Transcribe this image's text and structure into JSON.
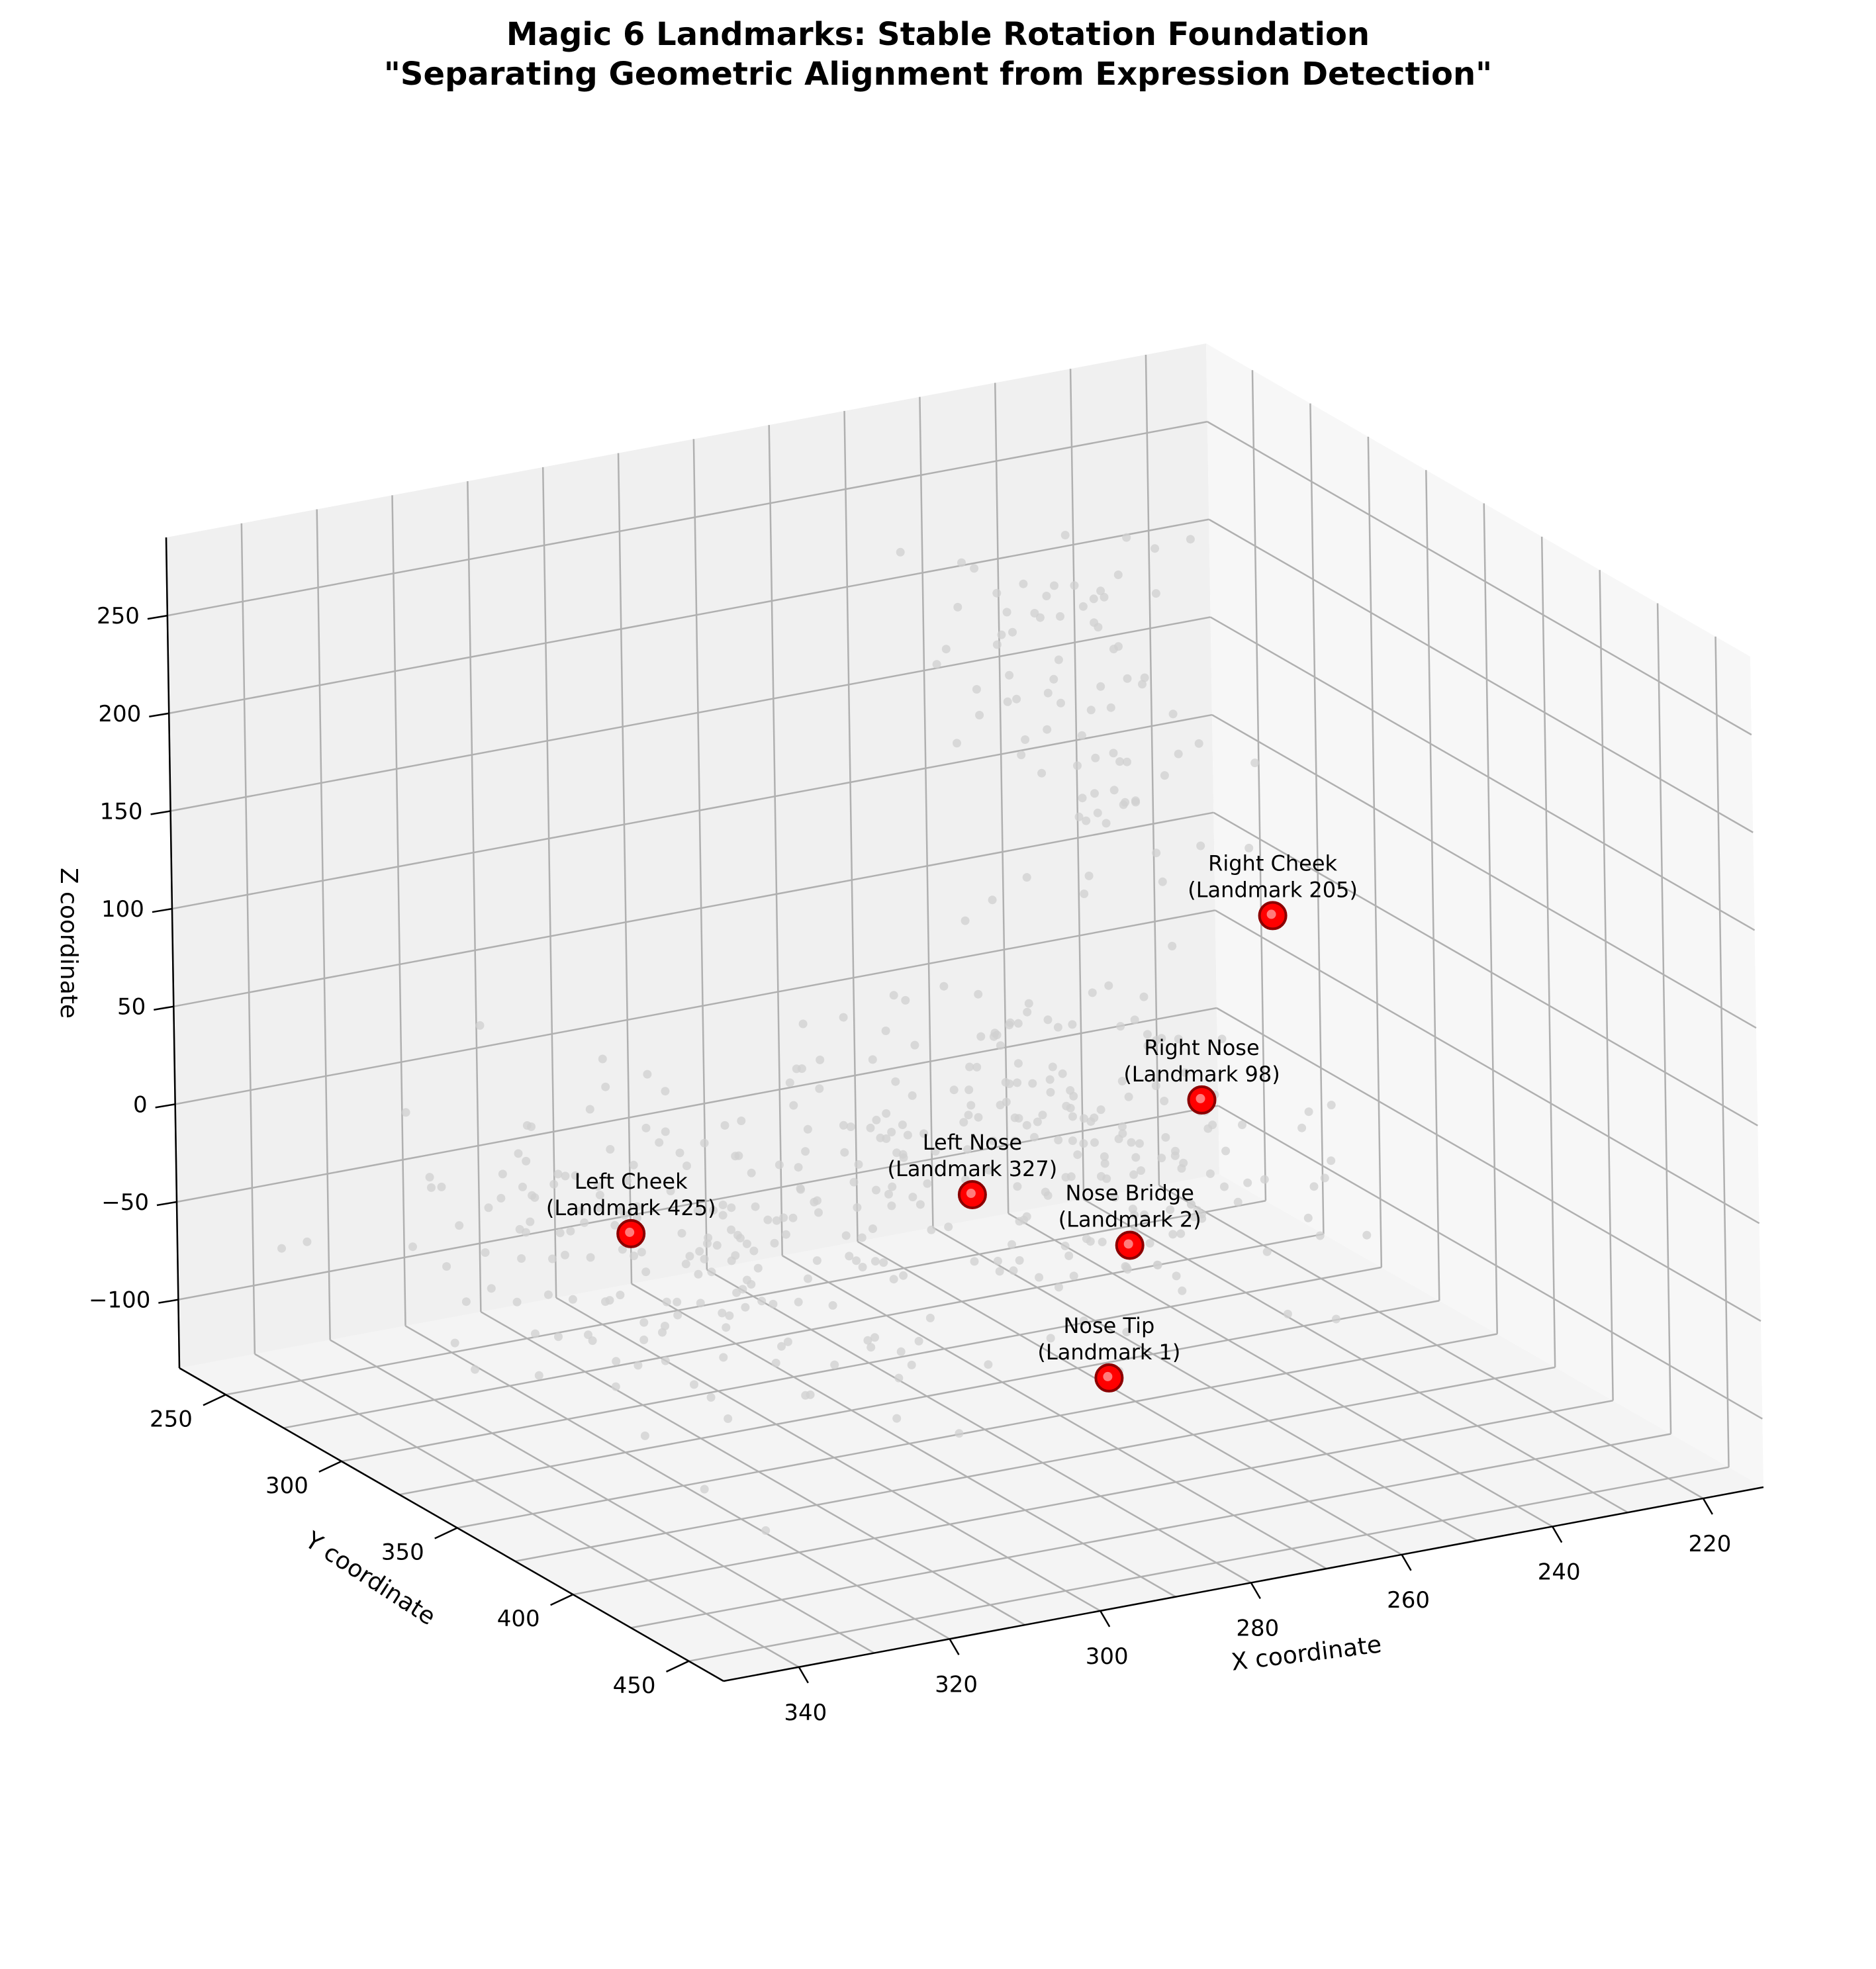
{
  "chart_data": {
    "type": "scatter",
    "title": "Magic 6 Landmarks: Stable Rotation Foundation",
    "subtitle": "\"Separating Geometric Alignment from Expression Detection\"",
    "xlabel": "X coordinate",
    "ylabel": "Y coordinate",
    "zlabel": "Z coordinate",
    "xlim": [
      212,
      350
    ],
    "ylim": [
      230,
      465
    ],
    "zlim": [
      -135,
      290
    ],
    "x_ticks": [
      340,
      320,
      300,
      280,
      260,
      240,
      220
    ],
    "y_ticks": [
      250,
      300,
      350,
      400,
      450
    ],
    "z_ticks": [
      250,
      200,
      150,
      100,
      50,
      0,
      -50,
      -100
    ],
    "grid": true,
    "projection": "3d",
    "background_point_color": "#d0d0d0",
    "landmark_color": "#ff0000",
    "landmarks": [
      {
        "label": "Right Cheek",
        "sublabel": "(Landmark 205)",
        "x": 222,
        "y": 288,
        "z": 44
      },
      {
        "label": "Right Nose",
        "sublabel": "(Landmark 98)",
        "x": 243,
        "y": 325,
        "z": -10
      },
      {
        "label": "Nose Bridge",
        "sublabel": "(Landmark 2)",
        "x": 258,
        "y": 342,
        "z": -62
      },
      {
        "label": "Left Nose",
        "sublabel": "(Landmark 327)",
        "x": 269,
        "y": 310,
        "z": -50
      },
      {
        "label": "Nose Tip",
        "sublabel": "(Landmark 1)",
        "x": 268,
        "y": 365,
        "z": -107
      },
      {
        "label": "Left Cheek",
        "sublabel": "(Landmark 425)",
        "x": 310,
        "y": 296,
        "z": -50
      }
    ]
  }
}
